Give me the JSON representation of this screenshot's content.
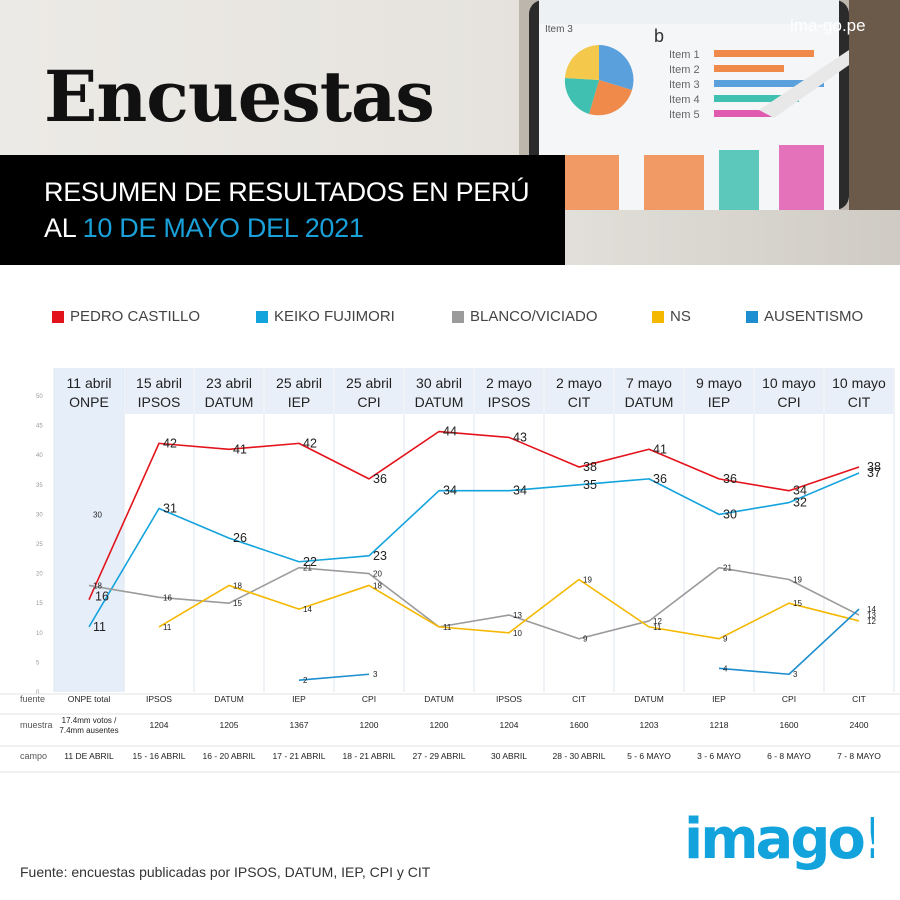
{
  "header": {
    "title": "Encuestas",
    "subtitle_line1": "RESUMEN DE RESULTADOS EN PERÚ",
    "subtitle_line2_prefix": "AL ",
    "subtitle_line2_date": "10 DE MAYO DEL 2021",
    "site": "ima-go.pe",
    "tablet_pie_label": "Item 3",
    "tablet_letter": "b",
    "tablet_items": [
      "Item 1",
      "Item 2",
      "Item 3",
      "Item 4",
      "Item 5"
    ]
  },
  "footer": {
    "source_note": "Fuente: encuestas publicadas por IPSOS, DATUM, IEP, CPI  y CIT",
    "logo_text": "imago!"
  },
  "colors": {
    "castillo": "#e3131b",
    "fujimori": "#13a3dd",
    "blanco": "#9b9b9b",
    "ns": "#f5b800",
    "ausentismo": "#1d8ecf",
    "onpe_band": "#e6eefa",
    "header_band": "#e9eff8"
  },
  "chart_data": {
    "type": "line",
    "legend": [
      "PEDRO CASTILLO",
      "KEIKO FUJIMORI",
      "BLANCO/VICIADO",
      "NS",
      "AUSENTISMO"
    ],
    "legend_placement": "top",
    "ylim": [
      0,
      50
    ],
    "yticks": [
      0,
      5,
      10,
      15,
      20,
      25,
      30,
      35,
      40,
      45,
      50
    ],
    "grid": false,
    "columns": [
      {
        "date": "11 abril",
        "name": "ONPE"
      },
      {
        "date": "15 abril",
        "name": "IPSOS"
      },
      {
        "date": "23 abril",
        "name": "DATUM"
      },
      {
        "date": "25 abril",
        "name": "IEP"
      },
      {
        "date": "25 abril",
        "name": "CPI"
      },
      {
        "date": "30 abril",
        "name": "DATUM"
      },
      {
        "date": "2 mayo",
        "name": "IPSOS"
      },
      {
        "date": "2 mayo",
        "name": "CIT"
      },
      {
        "date": "7 mayo",
        "name": "DATUM"
      },
      {
        "date": "9 mayo",
        "name": "IEP"
      },
      {
        "date": "10 mayo",
        "name": "CPI"
      },
      {
        "date": "10 mayo",
        "name": "CIT"
      }
    ],
    "series": [
      {
        "name": "PEDRO CASTILLO",
        "values": [
          15.6,
          42,
          41,
          42,
          36,
          44,
          43,
          38,
          41,
          36,
          34,
          38
        ],
        "labels": [
          "",
          "42",
          "41",
          "42",
          "36",
          "44",
          "43",
          "38",
          "41",
          "36",
          "34",
          "38"
        ]
      },
      {
        "name": "KEIKO FUJIMORI",
        "values": [
          11,
          31,
          26,
          22,
          23,
          34,
          34,
          35,
          36,
          30,
          32,
          37
        ],
        "labels": [
          "11",
          "31",
          "26",
          "22",
          "23",
          "34",
          "34",
          "35",
          "36",
          "30",
          "32",
          "37"
        ]
      },
      {
        "name": "BLANCO/VICIADO",
        "values": [
          18,
          16,
          15,
          21,
          20,
          11,
          13,
          9,
          12,
          21,
          19,
          13
        ],
        "labels": [
          "18",
          "16",
          "15",
          "21",
          "20",
          "11",
          "13",
          "9",
          "12",
          "21",
          "19",
          "13"
        ]
      },
      {
        "name": "NS",
        "values": [
          null,
          11,
          18,
          14,
          18,
          11,
          10,
          19,
          11,
          9,
          15,
          12
        ],
        "labels": [
          "",
          "11",
          "18",
          "14",
          "18",
          "",
          "10",
          "19",
          "11",
          "9",
          "15",
          "12"
        ]
      },
      {
        "name": "AUSENTISMO",
        "values": [
          null,
          null,
          null,
          2,
          3,
          null,
          null,
          null,
          null,
          4,
          3,
          14
        ],
        "labels": [
          "",
          "",
          "",
          "2",
          "3",
          "",
          "",
          "",
          "",
          "4",
          "3",
          "14"
        ]
      }
    ],
    "annotations": [
      {
        "column": 0,
        "value": 30,
        "text": "30"
      },
      {
        "column": 0,
        "value": 16,
        "text": "16"
      }
    ],
    "table": {
      "row_labels": [
        "fuente",
        "muestra",
        "campo"
      ],
      "fuente": [
        "ONPE  total",
        "IPSOS",
        "DATUM",
        "IEP",
        "CPI",
        "DATUM",
        "IPSOS",
        "CIT",
        "DATUM",
        "IEP",
        "CPI",
        "CIT"
      ],
      "muestra": [
        "17.4mm votos /\n7.4mm ausentes",
        "1204",
        "1205",
        "1367",
        "1200",
        "1200",
        "1204",
        "1600",
        "1203",
        "1218",
        "1600",
        "2400"
      ],
      "campo": [
        "11 DE ABRIL",
        "15 - 16 ABRIL",
        "16 - 20 ABRIL",
        "17 - 21 ABRIL",
        "18 - 21 ABRIL",
        "27 - 29 ABRIL",
        "30 ABRIL",
        "28 - 30 ABRIL",
        "5 - 6  MAYO",
        "3 - 6  MAYO",
        "6 - 8  MAYO",
        "7 - 8  MAYO"
      ]
    }
  }
}
